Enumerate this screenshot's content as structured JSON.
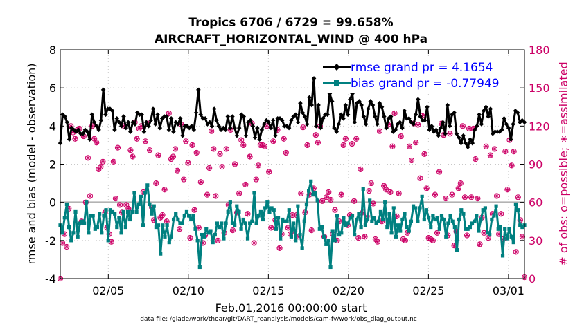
{
  "chart_data": {
    "type": "line",
    "title": [
      "Tropics 6706 / 6729 = 99.658%",
      "AIRCRAFT_HORIZONTAL_WIND @ 400 hPa"
    ],
    "xlabel": "Feb.01,2016 00:00:00 start",
    "ylabel": "rmse and bias (model - observation)",
    "y2label": "# of obs: o=possible; ∗=assimilated",
    "footnote": "data file: /glade/work/thoar/git/DART_reanalysis/models/cam-fv/work/obs_diag_output.nc",
    "xlim": [
      1,
      30
    ],
    "ylim": [
      -4,
      8
    ],
    "y2lim": [
      0,
      180
    ],
    "x_ticks": [
      4,
      9,
      14,
      19,
      24,
      29
    ],
    "x_tick_labels": [
      "02/05",
      "02/10",
      "02/15",
      "02/20",
      "02/25",
      "03/01"
    ],
    "y_ticks": [
      -4,
      -2,
      0,
      2,
      4,
      6,
      8
    ],
    "y_tick_labels": [
      "-4",
      "-2",
      "0",
      "2",
      "4",
      "6",
      "8"
    ],
    "y2_ticks": [
      0,
      30,
      60,
      90,
      120,
      150,
      180
    ],
    "y2_tick_labels": [
      "0",
      "30",
      "60",
      "90",
      "120",
      "150",
      "180"
    ],
    "grid": true,
    "legend_position": "top-right",
    "colors": {
      "rmse": "#000000",
      "bias": "#008080",
      "obs": "#cc0066",
      "zero_line": "#b3b3b3",
      "legend_text": "#0000ff"
    },
    "series": [
      {
        "name": "rmse grand pr = 4.1654",
        "color": "#000000",
        "marker": "diamond",
        "values": [
          3.1,
          4.6,
          4.5,
          4.2,
          3.3,
          3.9,
          3.8,
          3.7,
          3.8,
          3.6,
          3.6,
          3.8,
          3.7,
          3.3,
          4.6,
          4.2,
          4.0,
          3.8,
          4.3,
          5.9,
          4.6,
          4.9,
          4.9,
          4.8,
          3.8,
          4.4,
          4.2,
          4.0,
          4.5,
          3.9,
          4.2,
          3.7,
          4.2,
          4.1,
          4.7,
          4.6,
          4.6,
          3.7,
          4.2,
          4.0,
          4.3,
          4.9,
          4.1,
          4.6,
          3.9,
          4.4,
          4.5,
          4.5,
          3.8,
          4.4,
          3.7,
          4.2,
          4.1,
          4.4,
          3.5,
          4.0,
          4.0,
          3.9,
          4.0,
          3.8,
          4.7,
          5.9,
          4.6,
          4.4,
          4.4,
          4.1,
          4.2,
          4.0,
          4.9,
          4.3,
          4.0,
          3.8,
          3.9,
          3.8,
          4.5,
          3.9,
          4.5,
          3.9,
          3.5,
          3.9,
          4.6,
          4.5,
          3.5,
          4.2,
          4.3,
          4.0,
          3.4,
          3.9,
          3.3,
          3.8,
          4.1,
          4.3,
          4.2,
          3.9,
          4.3,
          3.5,
          4.4,
          4.4,
          4.3,
          4.0,
          4.0,
          3.9,
          4.3,
          4.5,
          4.6,
          4.2,
          5.2,
          4.7,
          4.5,
          4.1,
          5.5,
          5.1,
          6.5,
          4.0,
          5.1,
          3.9,
          4.4,
          4.6,
          4.6,
          5.7,
          5.3,
          3.9,
          3.7,
          4.1,
          4.6,
          4.4,
          5.1,
          4.6,
          5.4,
          5.7,
          4.2,
          5.2,
          5.3,
          5.1,
          4.5,
          4.1,
          4.9,
          5.3,
          5.1,
          4.5,
          4.1,
          5.2,
          5.0,
          4.5,
          3.9,
          4.4,
          4.5,
          3.7,
          3.8,
          4.1,
          4.2,
          3.9,
          4.8,
          4.4,
          4.4,
          4.2,
          4.1,
          4.6,
          5.4,
          4.5,
          4.3,
          4.3,
          5.0,
          3.8,
          4.0,
          3.7,
          3.8,
          3.5,
          3.9,
          4.2,
          3.6,
          5.1,
          4.0,
          4.6,
          4.7,
          3.6,
          3.4,
          3.1,
          3.5,
          3.1,
          2.9,
          3.3,
          3.1,
          3.8,
          4.0,
          4.6,
          4.1,
          4.8,
          5.0,
          4.5,
          4.9,
          3.6,
          3.7,
          3.7,
          3.7,
          3.8,
          4.4,
          4.1,
          3.9,
          3.3,
          4.1,
          4.8,
          4.7,
          4.2,
          4.3,
          4.2
        ]
      },
      {
        "name": "bias grand pr = -0.77949",
        "color": "#008080",
        "marker": "square",
        "values": [
          -1.2,
          -1.6,
          -0.8,
          -0.1,
          -1.3,
          -2.0,
          -1.6,
          -0.5,
          -1.8,
          -1.1,
          -1.0,
          -1.1,
          0.0,
          -1.6,
          -0.7,
          -0.7,
          -1.4,
          -1.3,
          -0.6,
          -1.6,
          -0.7,
          -0.4,
          -2.0,
          -0.4,
          -0.5,
          -0.6,
          -1.3,
          -0.8,
          -1.6,
          -0.5,
          -1.3,
          -0.5,
          -0.9,
          -0.5,
          0.5,
          -0.5,
          -0.1,
          0.3,
          -1.2,
          0.5,
          0.9,
          -0.1,
          -0.6,
          -0.2,
          -1.3,
          -1.2,
          -2.7,
          -1.2,
          -1.8,
          -1.2,
          -2.1,
          -1.8,
          -0.9,
          -0.6,
          -0.9,
          -1.1,
          -1.1,
          -0.7,
          -0.5,
          -0.7,
          -0.9,
          -0.7,
          -1.4,
          -2.0,
          -3.4,
          -1.7,
          -1.8,
          -1.4,
          -1.6,
          -1.5,
          -2.1,
          -1.7,
          -1.1,
          -1.3,
          -1.1,
          -1.9,
          -1.1,
          -0.5,
          0.0,
          -1.1,
          -1.2,
          -0.2,
          -0.5,
          -1.4,
          -0.9,
          -1.1,
          -1.9,
          -1.1,
          -1.0,
          0.5,
          -1.1,
          -0.7,
          -0.5,
          -0.9,
          -0.3,
          0.0,
          -0.5,
          -0.3,
          -0.4,
          -1.4,
          -0.8,
          -1.9,
          -0.9,
          -1.0,
          -1.0,
          -0.4,
          -1.8,
          -1.1,
          -2.0,
          -0.2,
          -1.7,
          -2.4,
          -1.0,
          -0.1,
          0.6,
          1.1,
          0.4,
          0.5,
          0.1,
          -1.4,
          -1.3,
          -1.8,
          -2.2,
          -2.0,
          -3.4,
          -1.5,
          -2.0,
          -0.7,
          -1.7,
          -1.6,
          -0.8,
          -1.2,
          -1.1,
          -0.8,
          -0.7,
          -1.7,
          -0.9,
          -0.6,
          -1.3,
          0.7,
          -1.2,
          -0.9,
          0.1,
          -1.0,
          -0.8,
          -1.1,
          -1.0,
          -0.5,
          -0.9,
          0.0,
          -1.3,
          -0.6,
          -1.6,
          -0.3,
          -1.8,
          -1.2,
          -1.5,
          -0.9,
          -0.6,
          -1.3,
          -1.5,
          -1.0,
          -0.2,
          -0.3,
          -1.0,
          -0.3,
          0.3,
          -0.9,
          -0.4,
          -0.8,
          -1.3,
          -0.7,
          -0.9,
          -0.8,
          -1.4,
          -0.7,
          -0.9,
          -1.8,
          -1.1,
          -0.7,
          -1.0,
          -1.3,
          -2.5,
          -0.9,
          -0.4,
          -0.6,
          -1.4,
          -1.4,
          -1.3,
          -1.1,
          -1.0,
          -0.7,
          -1.5,
          -0.9,
          -0.4,
          -0.3,
          -1.6,
          -1.7,
          -0.9,
          -0.7,
          -0.2,
          -1.4,
          -1.3,
          -2.8,
          -1.4,
          -1.9,
          -1.4,
          -1.8,
          -2.1,
          -0.1,
          -0.4,
          -1.2,
          -1.3,
          -1.2
        ]
      }
    ],
    "obs_counts": {
      "name": "# of obs",
      "possible": [
        0,
        28,
        35,
        25,
        55,
        120,
        115,
        110,
        117,
        118,
        45,
        112,
        60,
        95,
        65,
        120,
        110,
        107,
        86,
        88,
        92,
        52,
        40,
        35,
        29,
        92,
        63,
        103,
        58,
        52,
        120,
        58,
        55,
        101,
        96,
        123,
        110,
        118,
        120,
        68,
        108,
        122,
        101,
        56,
        46,
        75,
        97,
        48,
        50,
        70,
        45,
        130,
        94,
        96,
        102,
        85,
        39,
        121,
        78,
        108,
        91,
        32,
        105,
        54,
        99,
        40,
        76,
        28,
        34,
        66,
        87,
        116,
        102,
        65,
        30,
        98,
        88,
        36,
        102,
        58,
        117,
        38,
        90,
        52,
        67,
        109,
        105,
        74,
        51,
        96,
        122,
        28,
        78,
        89,
        105,
        105,
        104,
        120,
        84,
        40,
        108,
        46,
        117,
        24,
        35,
        110,
        99,
        40,
        35,
        50,
        37,
        50,
        33,
        67,
        119,
        52,
        105,
        66,
        38,
        71,
        113,
        107,
        120,
        61,
        33,
        64,
        68,
        62,
        35,
        54,
        30,
        45,
        66,
        105,
        110,
        42,
        50,
        106,
        61,
        110,
        32,
        86,
        52,
        33,
        49,
        69,
        75,
        59,
        31,
        29,
        116,
        45,
        73,
        70,
        121,
        68,
        104,
        130,
        49,
        67,
        112,
        31,
        30,
        36,
        104,
        93,
        122,
        107,
        121,
        79,
        128,
        98,
        71,
        32,
        31,
        30,
        66,
        36,
        84,
        122,
        113,
        63,
        34,
        114,
        66,
        26,
        37,
        71,
        75,
        120,
        64,
        34,
        118,
        64,
        118,
        94,
        63,
        27,
        48,
        36,
        104,
        32,
        97,
        51,
        102,
        65,
        35,
        51,
        31,
        100,
        70,
        109,
        89,
        100,
        21,
        64,
        46,
        33,
        1
      ],
      "assimilated": [
        0,
        28,
        35,
        25,
        55,
        120,
        115,
        110,
        117,
        118,
        45,
        112,
        60,
        95,
        65,
        120,
        110,
        107,
        86,
        88,
        92,
        52,
        40,
        35,
        29,
        92,
        63,
        103,
        58,
        52,
        120,
        58,
        55,
        101,
        96,
        123,
        110,
        118,
        120,
        68,
        108,
        122,
        101,
        56,
        46,
        75,
        97,
        48,
        50,
        70,
        45,
        130,
        94,
        96,
        102,
        85,
        39,
        121,
        78,
        108,
        91,
        32,
        105,
        54,
        99,
        40,
        76,
        28,
        34,
        66,
        87,
        116,
        102,
        65,
        30,
        98,
        88,
        36,
        102,
        58,
        117,
        38,
        90,
        52,
        67,
        109,
        105,
        74,
        51,
        96,
        122,
        28,
        78,
        89,
        105,
        105,
        104,
        120,
        84,
        40,
        108,
        46,
        117,
        24,
        35,
        110,
        99,
        40,
        35,
        50,
        37,
        50,
        33,
        67,
        119,
        52,
        105,
        66,
        38,
        71,
        113,
        107,
        120,
        61,
        33,
        64,
        68,
        62,
        35,
        54,
        30,
        45,
        66,
        105,
        110,
        42,
        50,
        106,
        61,
        110,
        32,
        86,
        52,
        33,
        49,
        69,
        75,
        59,
        31,
        29,
        116,
        45,
        73,
        70,
        121,
        68,
        104,
        130,
        49,
        67,
        112,
        31,
        30,
        36,
        104,
        93,
        122,
        107,
        121,
        79,
        128,
        98,
        71,
        32,
        31,
        30,
        66,
        36,
        84,
        122,
        113,
        63,
        34,
        114,
        66,
        26,
        37,
        71,
        75,
        120,
        64,
        34,
        118,
        64,
        118,
        94,
        63,
        27,
        48,
        36,
        104,
        32,
        97,
        51,
        102,
        65,
        35,
        51,
        31,
        100,
        70,
        109,
        89,
        100,
        21,
        64,
        46,
        33,
        1
      ]
    }
  }
}
